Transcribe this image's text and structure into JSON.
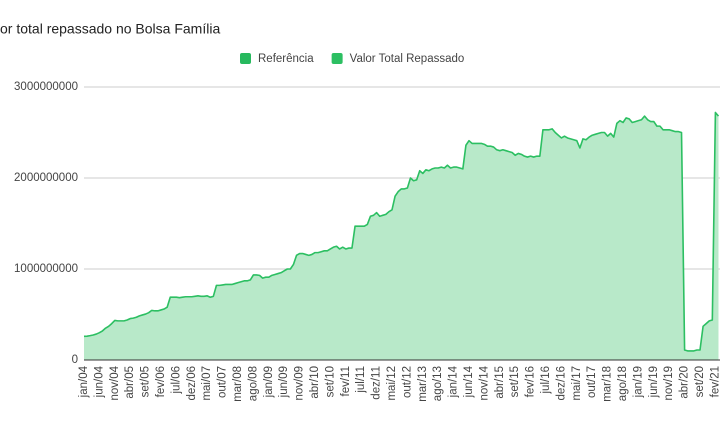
{
  "chart_data": {
    "type": "area",
    "title": "or total repassado no Bolsa Família",
    "legend": [
      {
        "name": "Referência",
        "color": "#27b95e"
      }
    ],
    "categories": [
      "jan/04",
      null,
      null,
      null,
      null,
      "jun/04",
      null,
      null,
      null,
      null,
      "nov/04",
      null,
      null,
      null,
      null,
      "abr/05",
      null,
      null,
      null,
      null,
      "set/05",
      null,
      null,
      null,
      null,
      "fev/06",
      null,
      null,
      null,
      null,
      "jul/06",
      null,
      null,
      null,
      null,
      "dez/06",
      null,
      null,
      null,
      null,
      "mai/07",
      null,
      null,
      null,
      null,
      "out/07",
      null,
      null,
      null,
      null,
      "mar/08",
      null,
      null,
      null,
      null,
      "ago/08",
      null,
      null,
      null,
      null,
      "jan/09",
      null,
      null,
      null,
      null,
      "jun/09",
      null,
      null,
      null,
      null,
      "nov/09",
      null,
      null,
      null,
      null,
      "abr/10",
      null,
      null,
      null,
      null,
      "set/10",
      null,
      null,
      null,
      null,
      "fev/11",
      null,
      null,
      null,
      null,
      "jul/11",
      null,
      null,
      null,
      null,
      "dez/11",
      null,
      null,
      null,
      null,
      "mai/12",
      null,
      null,
      null,
      null,
      "out/12",
      null,
      null,
      null,
      null,
      "mar/13",
      null,
      null,
      null,
      null,
      "ago/13",
      null,
      null,
      null,
      null,
      "jan/14",
      null,
      null,
      null,
      null,
      "jun/14",
      null,
      null,
      null,
      null,
      "nov/14",
      null,
      null,
      null,
      null,
      "abr/15",
      null,
      null,
      null,
      null,
      "set/15",
      null,
      null,
      null,
      null,
      "fev/16",
      null,
      null,
      null,
      null,
      "jul/16",
      null,
      null,
      null,
      null,
      "dez/16",
      null,
      null,
      null,
      null,
      "mai/17",
      null,
      null,
      null,
      null,
      "out/17",
      null,
      null,
      null,
      null,
      "mar/18",
      null,
      null,
      null,
      null,
      "ago/18",
      null,
      null,
      null,
      null,
      "jan/19",
      null,
      null,
      null,
      null,
      "jun/19",
      null,
      null,
      null,
      null,
      "nov/19",
      null,
      null,
      null,
      null,
      "abr/20",
      null,
      null,
      null,
      null,
      "set/20",
      null,
      null,
      null,
      null,
      "fev/21",
      null
    ],
    "series": [
      {
        "name": "Valor Total Repassado",
        "color": "#2cbf62",
        "fill": "#b8e9c9",
        "values": [
          260000000,
          262000000,
          268000000,
          275000000,
          285000000,
          300000000,
          320000000,
          350000000,
          370000000,
          400000000,
          435000000,
          430000000,
          430000000,
          430000000,
          440000000,
          455000000,
          460000000,
          470000000,
          485000000,
          495000000,
          505000000,
          520000000,
          545000000,
          540000000,
          540000000,
          550000000,
          560000000,
          580000000,
          690000000,
          690000000,
          690000000,
          685000000,
          690000000,
          695000000,
          695000000,
          695000000,
          700000000,
          705000000,
          700000000,
          700000000,
          705000000,
          690000000,
          700000000,
          820000000,
          820000000,
          825000000,
          830000000,
          830000000,
          830000000,
          840000000,
          850000000,
          860000000,
          870000000,
          870000000,
          880000000,
          935000000,
          935000000,
          930000000,
          900000000,
          910000000,
          910000000,
          930000000,
          940000000,
          950000000,
          960000000,
          980000000,
          1000000000,
          1000000000,
          1050000000,
          1150000000,
          1170000000,
          1170000000,
          1160000000,
          1150000000,
          1160000000,
          1180000000,
          1180000000,
          1190000000,
          1200000000,
          1200000000,
          1220000000,
          1240000000,
          1250000000,
          1220000000,
          1240000000,
          1220000000,
          1230000000,
          1230000000,
          1470000000,
          1470000000,
          1470000000,
          1470000000,
          1490000000,
          1580000000,
          1590000000,
          1620000000,
          1580000000,
          1590000000,
          1600000000,
          1630000000,
          1650000000,
          1800000000,
          1850000000,
          1880000000,
          1880000000,
          1890000000,
          2000000000,
          1970000000,
          1980000000,
          2080000000,
          2050000000,
          2090000000,
          2080000000,
          2100000000,
          2110000000,
          2110000000,
          2120000000,
          2110000000,
          2140000000,
          2110000000,
          2120000000,
          2120000000,
          2110000000,
          2100000000,
          2360000000,
          2410000000,
          2380000000,
          2380000000,
          2380000000,
          2380000000,
          2370000000,
          2350000000,
          2350000000,
          2340000000,
          2310000000,
          2300000000,
          2310000000,
          2300000000,
          2290000000,
          2280000000,
          2250000000,
          2270000000,
          2260000000,
          2240000000,
          2230000000,
          2240000000,
          2230000000,
          2240000000,
          2240000000,
          2530000000,
          2530000000,
          2530000000,
          2540000000,
          2500000000,
          2470000000,
          2440000000,
          2460000000,
          2440000000,
          2430000000,
          2420000000,
          2410000000,
          2330000000,
          2430000000,
          2420000000,
          2450000000,
          2470000000,
          2480000000,
          2490000000,
          2500000000,
          2500000000,
          2460000000,
          2490000000,
          2450000000,
          2600000000,
          2630000000,
          2610000000,
          2660000000,
          2650000000,
          2610000000,
          2620000000,
          2630000000,
          2640000000,
          2680000000,
          2640000000,
          2620000000,
          2620000000,
          2570000000,
          2570000000,
          2530000000,
          2530000000,
          2530000000,
          2520000000,
          2510000000,
          2510000000,
          2500000000,
          110000000,
          100000000,
          100000000,
          100000000,
          110000000,
          110000000,
          370000000,
          400000000,
          430000000,
          440000000,
          2720000000,
          2680000000
        ]
      }
    ],
    "ylim": [
      0,
      3000000000
    ],
    "yticks": [
      0,
      1000000000,
      2000000000,
      3000000000
    ],
    "grid": true
  }
}
